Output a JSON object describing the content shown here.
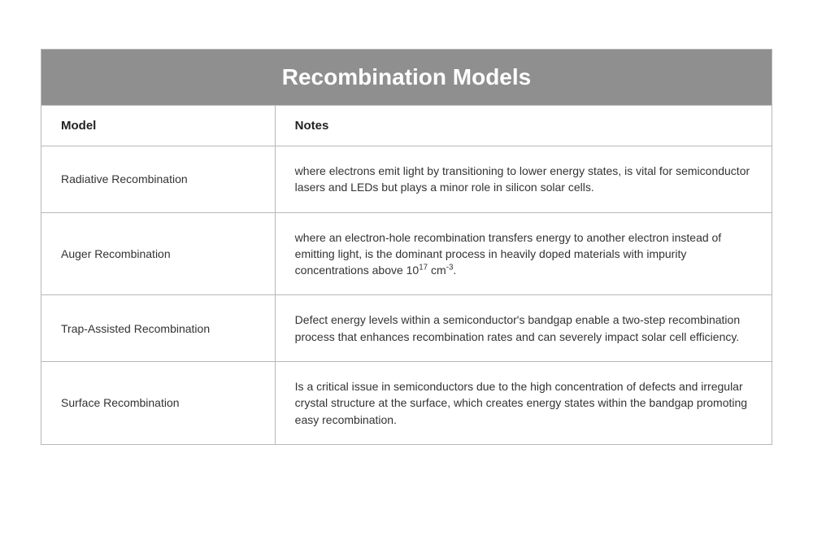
{
  "table": {
    "title": "Recombination Models",
    "title_bg": "#8f8f8f",
    "title_color": "#ffffff",
    "border_color": "#b8b8b8",
    "columns": [
      {
        "label": "Model",
        "width": "32%"
      },
      {
        "label": "Notes",
        "width": "68%"
      }
    ],
    "rows": [
      {
        "model": "Radiative Recombination",
        "notes": "where electrons emit light by transitioning to lower energy states, is vital for semiconductor lasers and LEDs but plays a minor role in silicon solar cells."
      },
      {
        "model": "Auger Recombination",
        "notes_html": "where an electron-hole recombination transfers energy to another electron instead of emitting light, is the dominant process in heavily doped materials with impurity concentrations above 10<sup>17</sup> cm<sup>-3</sup>."
      },
      {
        "model": "Trap-Assisted Recombination",
        "notes": "Defect energy levels within a semiconductor's bandgap enable a two-step recombination process that enhances recombination rates and can severely impact solar cell efficiency."
      },
      {
        "model": "Surface Recombination",
        "notes": "Is a critical issue in semiconductors due to the high concentration of defects and irregular crystal structure at the surface, which creates energy states within the bandgap promoting easy recombination."
      }
    ]
  }
}
